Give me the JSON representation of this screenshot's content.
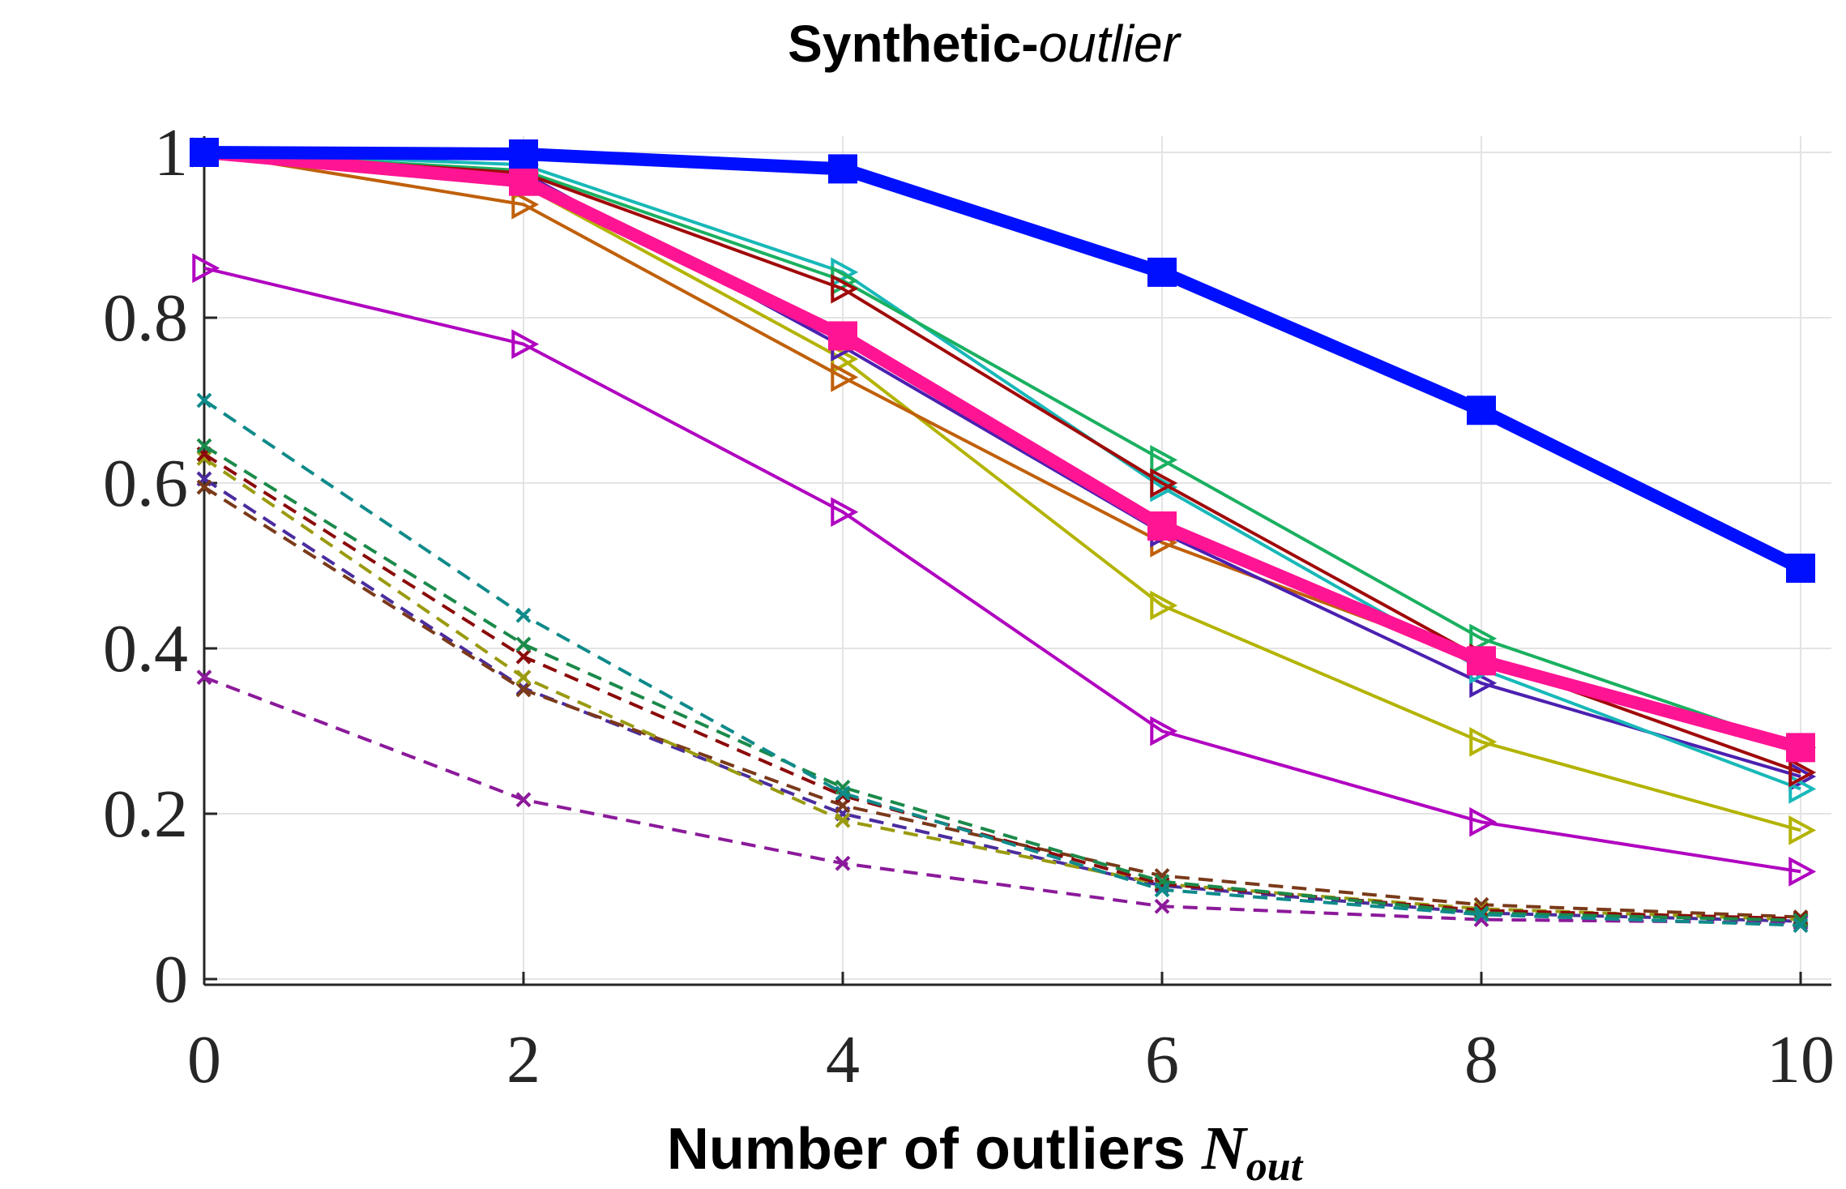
{
  "chart_data": {
    "type": "line",
    "title": {
      "main": "Synthetic-",
      "italic": "outlier"
    },
    "xlabel": {
      "text": "Number of outliers ",
      "var": "N",
      "sub": "out"
    },
    "ylabel": "",
    "xlim": [
      0,
      10
    ],
    "ylim": [
      0,
      1
    ],
    "x": [
      0,
      2,
      4,
      6,
      8,
      10
    ],
    "xticks": [
      "0",
      "2",
      "4",
      "6",
      "8",
      "10"
    ],
    "yticks": [
      "0",
      "0.2",
      "0.4",
      "0.6",
      "0.8",
      "1"
    ],
    "grid": true,
    "series": [
      {
        "name": "dashed-purple",
        "color": "#8B1A9A",
        "style": "dashed",
        "marker": "x",
        "width": 4,
        "values": [
          0.365,
          0.217,
          0.14,
          0.088,
          0.072,
          0.068
        ]
      },
      {
        "name": "dashed-indigo",
        "color": "#4B2C9E",
        "style": "dashed",
        "marker": "x",
        "width": 4,
        "values": [
          0.605,
          0.352,
          0.2,
          0.113,
          0.08,
          0.07
        ]
      },
      {
        "name": "dashed-brown",
        "color": "#7A3A1A",
        "style": "dashed",
        "marker": "x",
        "width": 4,
        "values": [
          0.595,
          0.35,
          0.21,
          0.125,
          0.09,
          0.075
        ]
      },
      {
        "name": "dashed-olive",
        "color": "#9A9A10",
        "style": "dashed",
        "marker": "x",
        "width": 4,
        "values": [
          0.63,
          0.365,
          0.192,
          0.115,
          0.085,
          0.072
        ]
      },
      {
        "name": "dashed-darkred",
        "color": "#8B0A0A",
        "style": "dashed",
        "marker": "x",
        "width": 4,
        "values": [
          0.635,
          0.39,
          0.222,
          0.115,
          0.083,
          0.073
        ]
      },
      {
        "name": "dashed-green",
        "color": "#1B8A4A",
        "style": "dashed",
        "marker": "x",
        "width": 4,
        "values": [
          0.645,
          0.405,
          0.232,
          0.118,
          0.08,
          0.071
        ]
      },
      {
        "name": "dashed-teal",
        "color": "#0F8A8A",
        "style": "dashed",
        "marker": "x",
        "width": 4,
        "values": [
          0.7,
          0.44,
          0.225,
          0.108,
          0.078,
          0.065
        ]
      },
      {
        "name": "solid-magenta",
        "color": "#B000C0",
        "style": "solid",
        "marker": "triangle-right",
        "width": 4,
        "values": [
          0.86,
          0.768,
          0.565,
          0.3,
          0.19,
          0.13
        ]
      },
      {
        "name": "solid-olive",
        "color": "#B3B300",
        "style": "solid",
        "marker": "triangle-right",
        "width": 4,
        "values": [
          1.0,
          0.96,
          0.75,
          0.452,
          0.287,
          0.18
        ]
      },
      {
        "name": "solid-orange",
        "color": "#C0600A",
        "style": "solid",
        "marker": "triangle-right",
        "width": 4,
        "values": [
          1.0,
          0.937,
          0.728,
          0.528,
          0.385,
          0.28
        ]
      },
      {
        "name": "solid-indigo",
        "color": "#4B20B0",
        "style": "solid",
        "marker": "triangle-right",
        "width": 4,
        "values": [
          1.0,
          0.975,
          0.765,
          0.54,
          0.358,
          0.245
        ]
      },
      {
        "name": "solid-teal",
        "color": "#18B8B8",
        "style": "solid",
        "marker": "triangle-right",
        "width": 4,
        "values": [
          1.0,
          0.985,
          0.855,
          0.595,
          0.375,
          0.23
        ]
      },
      {
        "name": "solid-green",
        "color": "#1AB060",
        "style": "solid",
        "marker": "triangle-right",
        "width": 4,
        "values": [
          1.0,
          0.978,
          0.845,
          0.628,
          0.412,
          0.28
        ]
      },
      {
        "name": "solid-darkred",
        "color": "#A00A0A",
        "style": "solid",
        "marker": "triangle-right",
        "width": 4,
        "values": [
          1.0,
          0.975,
          0.835,
          0.6,
          0.388,
          0.25
        ]
      },
      {
        "name": "pink-ours",
        "color": "#FF1493",
        "style": "solid",
        "marker": "square",
        "width": 16,
        "values": [
          1.0,
          0.965,
          0.778,
          0.548,
          0.385,
          0.28
        ]
      },
      {
        "name": "blue-ours",
        "color": "#0010FF",
        "style": "solid",
        "marker": "square",
        "width": 16,
        "values": [
          1.0,
          0.998,
          0.98,
          0.855,
          0.688,
          0.497
        ]
      }
    ]
  }
}
